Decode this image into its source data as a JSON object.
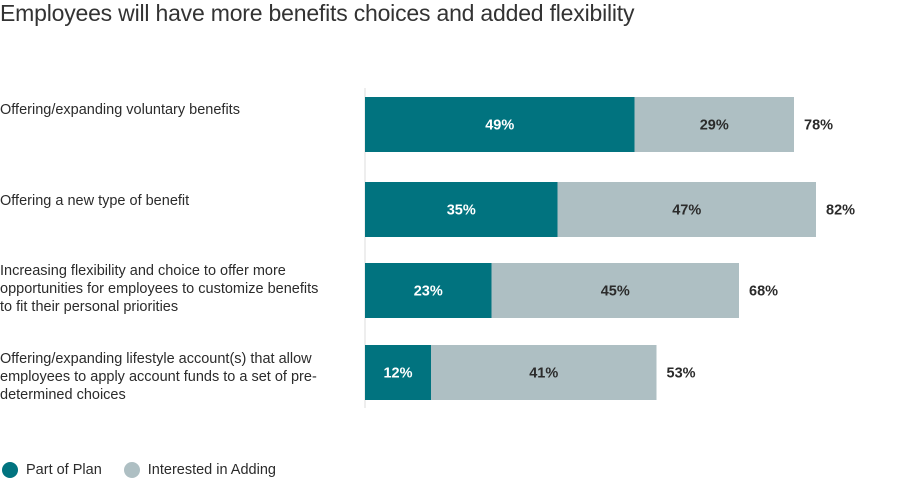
{
  "colors": {
    "part": "#01737f",
    "interested": "#aebfc3",
    "axis": "#dddddd"
  },
  "legend": {
    "part_of_plan": "Part of Plan",
    "interested_in_adding": "Interested in Adding"
  },
  "chart_data": {
    "type": "bar",
    "orientation": "horizontal",
    "stacked": true,
    "title": "Employees will have more benefits choices and added flexibility",
    "categories": [
      "Offering/expanding voluntary benefits",
      "Offering a new type of benefit",
      "Increasing flexibility and choice to offer more opportunities for employees to customize benefits to fit their personal priorities",
      "Offering/expanding lifestyle account(s) that allow employees to apply account funds to a set of pre-determined choices"
    ],
    "series": [
      {
        "name": "Part of Plan",
        "values": [
          49,
          35,
          23,
          12
        ]
      },
      {
        "name": "Interested in Adding",
        "values": [
          29,
          47,
          45,
          41
        ]
      }
    ],
    "totals": [
      78,
      82,
      68,
      53
    ],
    "unit": "%",
    "legend_position": "bottom-left"
  }
}
